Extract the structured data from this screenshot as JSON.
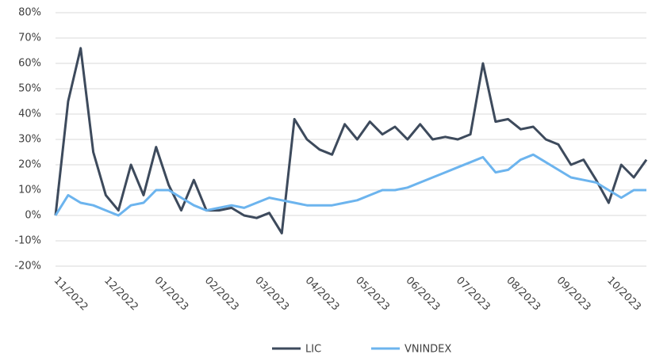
{
  "chart_data": {
    "type": "line",
    "categories": [
      "11/2022",
      null,
      null,
      null,
      "12/2022",
      null,
      null,
      null,
      "01/2023",
      null,
      null,
      null,
      "02/2023",
      null,
      null,
      null,
      "03/2023",
      null,
      null,
      null,
      "04/2023",
      null,
      null,
      null,
      "05/2023",
      null,
      null,
      null,
      "06/2023",
      null,
      null,
      null,
      "07/2023",
      null,
      null,
      null,
      "08/2023",
      null,
      null,
      null,
      "09/2023",
      null,
      null,
      null,
      "10/2023",
      null,
      null,
      null
    ],
    "series": [
      {
        "name": "LIC",
        "color": "#3d4a5c",
        "values": [
          0,
          45,
          66,
          25,
          8,
          2,
          20,
          8,
          27,
          12,
          2,
          14,
          2,
          2,
          3,
          0,
          -1,
          1,
          -7,
          38,
          30,
          26,
          24,
          36,
          30,
          37,
          32,
          35,
          30,
          36,
          30,
          31,
          30,
          32,
          60,
          37,
          38,
          34,
          35,
          30,
          28,
          20,
          22,
          14,
          5,
          20,
          15,
          22
        ]
      },
      {
        "name": "VNINDEX",
        "color": "#6cb4ee",
        "values": [
          0,
          8,
          5,
          4,
          2,
          0,
          4,
          5,
          10,
          10,
          7,
          4,
          2,
          3,
          4,
          3,
          5,
          7,
          6,
          5,
          4,
          4,
          4,
          5,
          6,
          8,
          10,
          10,
          11,
          13,
          15,
          17,
          19,
          21,
          23,
          17,
          18,
          22,
          24,
          21,
          18,
          15,
          14,
          13,
          10,
          7,
          10,
          10
        ]
      }
    ],
    "ylim": [
      -20,
      80
    ],
    "yticks": [
      {
        "value": -20,
        "label": "-20%"
      },
      {
        "value": -10,
        "label": "-10%"
      },
      {
        "value": 0,
        "label": "0%"
      },
      {
        "value": 10,
        "label": "10%"
      },
      {
        "value": 20,
        "label": "20%"
      },
      {
        "value": 30,
        "label": "30%"
      },
      {
        "value": 40,
        "label": "40%"
      },
      {
        "value": 50,
        "label": "50%"
      },
      {
        "value": 60,
        "label": "60%"
      },
      {
        "value": 70,
        "label": "70%"
      },
      {
        "value": 80,
        "label": "80%"
      }
    ],
    "grid": true,
    "legend": "bottom"
  }
}
